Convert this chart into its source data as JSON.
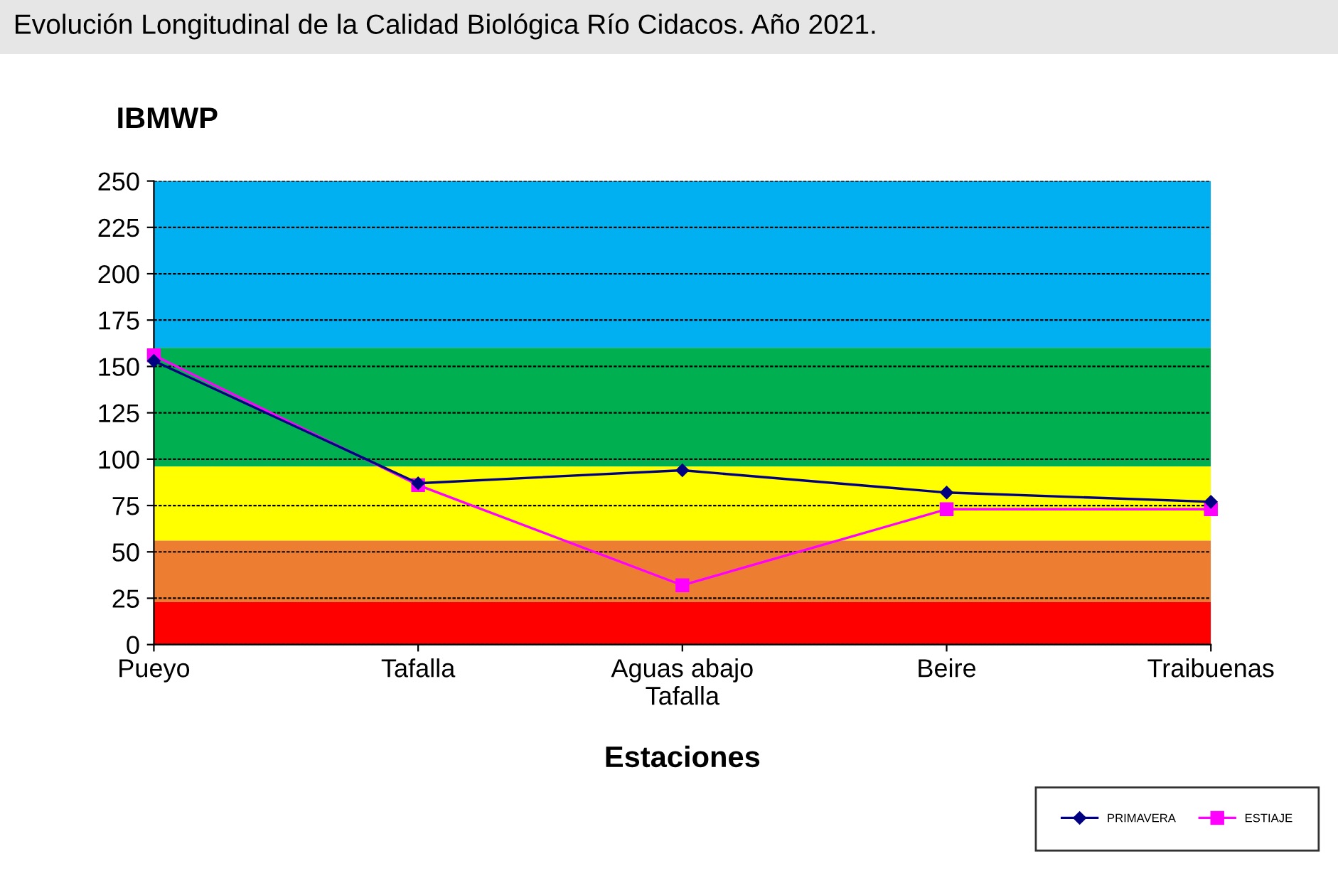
{
  "chart_data": {
    "type": "line",
    "title": "Evolución Longitudinal de la Calidad Biológica Río Cidacos. Año 2021.",
    "xlabel": "Estaciones",
    "ylabel": "IBMWP",
    "categories": [
      "Pueyo",
      "Tafalla",
      "Aguas abajo\nTafalla",
      "Beire",
      "Traibuenas"
    ],
    "series": [
      {
        "name": "PRIMAVERA",
        "color": "#000080",
        "marker": "diamond",
        "values": [
          153,
          87,
          94,
          82,
          77
        ]
      },
      {
        "name": "ESTIAJE",
        "color": "#ff00ff",
        "marker": "square",
        "values": [
          156,
          86,
          32,
          73,
          73
        ]
      }
    ],
    "ylim": [
      0,
      250
    ],
    "yticks": [
      0,
      25,
      50,
      75,
      100,
      125,
      150,
      175,
      200,
      225,
      250
    ],
    "grid": "y",
    "legend": "bottom right",
    "bands": [
      {
        "axis": "y",
        "from": 160,
        "to": 250,
        "color": "#00b0f0"
      },
      {
        "axis": "y",
        "from": 96,
        "to": 160,
        "color": "#00b050"
      },
      {
        "axis": "y",
        "from": 56,
        "to": 96,
        "color": "#ffff00"
      },
      {
        "axis": "y",
        "from": 23,
        "to": 56,
        "color": "#ed7d31"
      },
      {
        "axis": "y",
        "from": 0,
        "to": 23,
        "color": "#ff0000"
      }
    ]
  }
}
